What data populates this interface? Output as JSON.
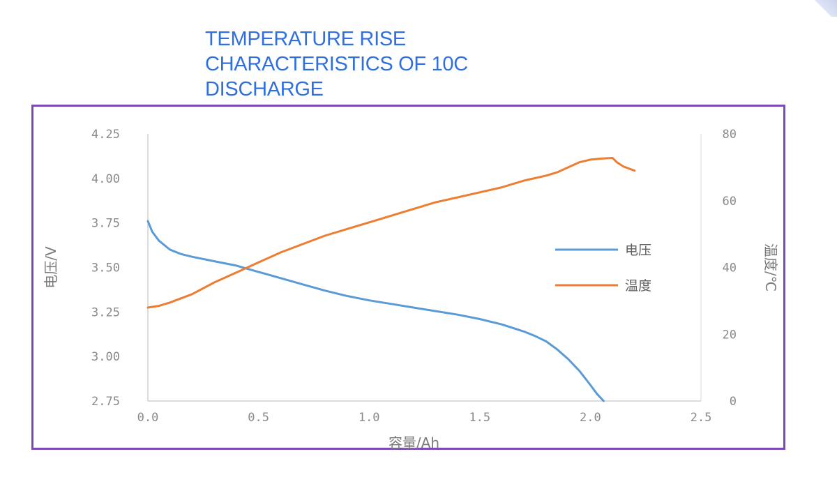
{
  "page": {
    "title": "TEMPERATURE RISE CHARACTERISTICS OF 10C DISCHARGE"
  },
  "chart_data": {
    "type": "line",
    "title": "TEMPERATURE RISE CHARACTERISTICS OF 10C DISCHARGE",
    "xlabel": "容量/Ah",
    "ylabel": "电压/V",
    "y2label": "温度/℃",
    "xlim": [
      0,
      2.5
    ],
    "ylim": [
      2.75,
      4.25
    ],
    "y2lim": [
      0,
      80
    ],
    "x_ticks": [
      "0.0",
      "0.5",
      "1.0",
      "1.5",
      "2.0",
      "2.5"
    ],
    "y_ticks": [
      "2.75",
      "3.00",
      "3.25",
      "3.50",
      "3.75",
      "4.00",
      "4.25"
    ],
    "y2_ticks": [
      "0",
      "20",
      "40",
      "60",
      "80"
    ],
    "grid": false,
    "legend_position": "right",
    "series": [
      {
        "name": "电压",
        "axis": "left",
        "color": "#5b9bd5",
        "x": [
          0.0,
          0.02,
          0.05,
          0.1,
          0.15,
          0.2,
          0.3,
          0.4,
          0.5,
          0.6,
          0.7,
          0.8,
          0.9,
          1.0,
          1.1,
          1.2,
          1.3,
          1.4,
          1.5,
          1.6,
          1.7,
          1.75,
          1.8,
          1.85,
          1.9,
          1.95,
          2.0,
          2.03,
          2.06
        ],
        "y": [
          3.76,
          3.7,
          3.65,
          3.6,
          3.575,
          3.56,
          3.535,
          3.51,
          3.475,
          3.44,
          3.405,
          3.37,
          3.34,
          3.315,
          3.295,
          3.275,
          3.255,
          3.235,
          3.21,
          3.18,
          3.14,
          3.115,
          3.085,
          3.04,
          2.985,
          2.92,
          2.84,
          2.79,
          2.75
        ]
      },
      {
        "name": "温度",
        "axis": "right",
        "color": "#ed7d31",
        "x": [
          0.0,
          0.05,
          0.1,
          0.2,
          0.3,
          0.4,
          0.5,
          0.6,
          0.7,
          0.8,
          0.9,
          1.0,
          1.1,
          1.2,
          1.3,
          1.4,
          1.5,
          1.6,
          1.7,
          1.8,
          1.85,
          1.9,
          1.95,
          2.0,
          2.05,
          2.1,
          2.12,
          2.15,
          2.2
        ],
        "y": [
          28,
          28.5,
          29.5,
          32,
          35.5,
          38.5,
          41.5,
          44.5,
          47,
          49.5,
          51.5,
          53.5,
          55.5,
          57.5,
          59.5,
          61,
          62.5,
          64,
          66,
          67.5,
          68.5,
          70,
          71.5,
          72.3,
          72.6,
          72.8,
          71.5,
          70.2,
          69
        ]
      }
    ]
  }
}
